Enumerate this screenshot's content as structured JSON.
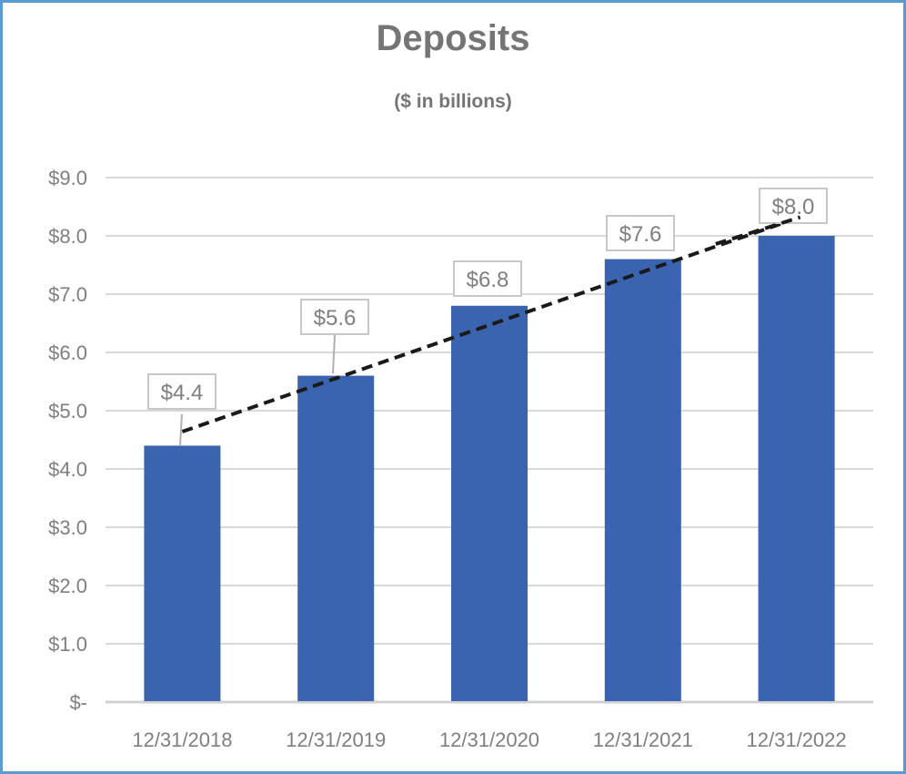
{
  "chart_data": {
    "type": "bar",
    "title": "Deposits",
    "subtitle": "($ in billions)",
    "xlabel": "",
    "ylabel": "",
    "categories": [
      "12/31/2018",
      "12/31/2019",
      "12/31/2020",
      "12/31/2021",
      "12/31/2022"
    ],
    "values": [
      4.4,
      5.6,
      6.8,
      7.6,
      8.0
    ],
    "data_labels": [
      "$4.4",
      "$5.6",
      "$6.8",
      "$7.6",
      "$8.0"
    ],
    "ylim": [
      0,
      9
    ],
    "yticks": [
      0,
      1,
      2,
      3,
      4,
      5,
      6,
      7,
      8,
      9
    ],
    "ytick_labels": [
      "$-",
      "$1.0",
      "$2.0",
      "$3.0",
      "$4.0",
      "$5.0",
      "$6.0",
      "$7.0",
      "$8.0",
      "$9.0"
    ],
    "grid": true,
    "legend": "none",
    "trendline": {
      "type": "linear",
      "style": "dashed",
      "color": "#1a1a1a"
    },
    "colors": {
      "bar": "#3a64b0",
      "border": "#5b9bd5",
      "grid": "#d9d9d9",
      "text": "#757575"
    }
  }
}
